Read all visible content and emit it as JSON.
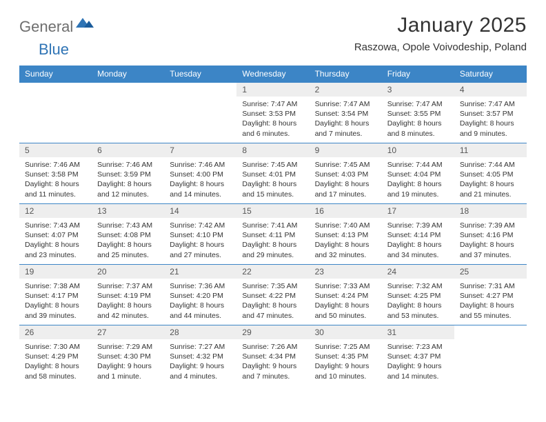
{
  "logo": {
    "general": "General",
    "blue": "Blue"
  },
  "title": "January 2025",
  "location": "Raszowa, Opole Voivodeship, Poland",
  "colors": {
    "header_bg": "#3c85c6",
    "header_fg": "#ffffff",
    "daynum_bg": "#eeeeee",
    "border": "#3c85c6",
    "logo_gray": "#6e6e6e",
    "logo_blue": "#2f74b5",
    "text": "#333333"
  },
  "weekdays": [
    "Sunday",
    "Monday",
    "Tuesday",
    "Wednesday",
    "Thursday",
    "Friday",
    "Saturday"
  ],
  "weeks": [
    [
      null,
      null,
      null,
      {
        "d": "1",
        "sr": "Sunrise: 7:47 AM",
        "ss": "Sunset: 3:53 PM",
        "dl1": "Daylight: 8 hours",
        "dl2": "and 6 minutes."
      },
      {
        "d": "2",
        "sr": "Sunrise: 7:47 AM",
        "ss": "Sunset: 3:54 PM",
        "dl1": "Daylight: 8 hours",
        "dl2": "and 7 minutes."
      },
      {
        "d": "3",
        "sr": "Sunrise: 7:47 AM",
        "ss": "Sunset: 3:55 PM",
        "dl1": "Daylight: 8 hours",
        "dl2": "and 8 minutes."
      },
      {
        "d": "4",
        "sr": "Sunrise: 7:47 AM",
        "ss": "Sunset: 3:57 PM",
        "dl1": "Daylight: 8 hours",
        "dl2": "and 9 minutes."
      }
    ],
    [
      {
        "d": "5",
        "sr": "Sunrise: 7:46 AM",
        "ss": "Sunset: 3:58 PM",
        "dl1": "Daylight: 8 hours",
        "dl2": "and 11 minutes."
      },
      {
        "d": "6",
        "sr": "Sunrise: 7:46 AM",
        "ss": "Sunset: 3:59 PM",
        "dl1": "Daylight: 8 hours",
        "dl2": "and 12 minutes."
      },
      {
        "d": "7",
        "sr": "Sunrise: 7:46 AM",
        "ss": "Sunset: 4:00 PM",
        "dl1": "Daylight: 8 hours",
        "dl2": "and 14 minutes."
      },
      {
        "d": "8",
        "sr": "Sunrise: 7:45 AM",
        "ss": "Sunset: 4:01 PM",
        "dl1": "Daylight: 8 hours",
        "dl2": "and 15 minutes."
      },
      {
        "d": "9",
        "sr": "Sunrise: 7:45 AM",
        "ss": "Sunset: 4:03 PM",
        "dl1": "Daylight: 8 hours",
        "dl2": "and 17 minutes."
      },
      {
        "d": "10",
        "sr": "Sunrise: 7:44 AM",
        "ss": "Sunset: 4:04 PM",
        "dl1": "Daylight: 8 hours",
        "dl2": "and 19 minutes."
      },
      {
        "d": "11",
        "sr": "Sunrise: 7:44 AM",
        "ss": "Sunset: 4:05 PM",
        "dl1": "Daylight: 8 hours",
        "dl2": "and 21 minutes."
      }
    ],
    [
      {
        "d": "12",
        "sr": "Sunrise: 7:43 AM",
        "ss": "Sunset: 4:07 PM",
        "dl1": "Daylight: 8 hours",
        "dl2": "and 23 minutes."
      },
      {
        "d": "13",
        "sr": "Sunrise: 7:43 AM",
        "ss": "Sunset: 4:08 PM",
        "dl1": "Daylight: 8 hours",
        "dl2": "and 25 minutes."
      },
      {
        "d": "14",
        "sr": "Sunrise: 7:42 AM",
        "ss": "Sunset: 4:10 PM",
        "dl1": "Daylight: 8 hours",
        "dl2": "and 27 minutes."
      },
      {
        "d": "15",
        "sr": "Sunrise: 7:41 AM",
        "ss": "Sunset: 4:11 PM",
        "dl1": "Daylight: 8 hours",
        "dl2": "and 29 minutes."
      },
      {
        "d": "16",
        "sr": "Sunrise: 7:40 AM",
        "ss": "Sunset: 4:13 PM",
        "dl1": "Daylight: 8 hours",
        "dl2": "and 32 minutes."
      },
      {
        "d": "17",
        "sr": "Sunrise: 7:39 AM",
        "ss": "Sunset: 4:14 PM",
        "dl1": "Daylight: 8 hours",
        "dl2": "and 34 minutes."
      },
      {
        "d": "18",
        "sr": "Sunrise: 7:39 AM",
        "ss": "Sunset: 4:16 PM",
        "dl1": "Daylight: 8 hours",
        "dl2": "and 37 minutes."
      }
    ],
    [
      {
        "d": "19",
        "sr": "Sunrise: 7:38 AM",
        "ss": "Sunset: 4:17 PM",
        "dl1": "Daylight: 8 hours",
        "dl2": "and 39 minutes."
      },
      {
        "d": "20",
        "sr": "Sunrise: 7:37 AM",
        "ss": "Sunset: 4:19 PM",
        "dl1": "Daylight: 8 hours",
        "dl2": "and 42 minutes."
      },
      {
        "d": "21",
        "sr": "Sunrise: 7:36 AM",
        "ss": "Sunset: 4:20 PM",
        "dl1": "Daylight: 8 hours",
        "dl2": "and 44 minutes."
      },
      {
        "d": "22",
        "sr": "Sunrise: 7:35 AM",
        "ss": "Sunset: 4:22 PM",
        "dl1": "Daylight: 8 hours",
        "dl2": "and 47 minutes."
      },
      {
        "d": "23",
        "sr": "Sunrise: 7:33 AM",
        "ss": "Sunset: 4:24 PM",
        "dl1": "Daylight: 8 hours",
        "dl2": "and 50 minutes."
      },
      {
        "d": "24",
        "sr": "Sunrise: 7:32 AM",
        "ss": "Sunset: 4:25 PM",
        "dl1": "Daylight: 8 hours",
        "dl2": "and 53 minutes."
      },
      {
        "d": "25",
        "sr": "Sunrise: 7:31 AM",
        "ss": "Sunset: 4:27 PM",
        "dl1": "Daylight: 8 hours",
        "dl2": "and 55 minutes."
      }
    ],
    [
      {
        "d": "26",
        "sr": "Sunrise: 7:30 AM",
        "ss": "Sunset: 4:29 PM",
        "dl1": "Daylight: 8 hours",
        "dl2": "and 58 minutes."
      },
      {
        "d": "27",
        "sr": "Sunrise: 7:29 AM",
        "ss": "Sunset: 4:30 PM",
        "dl1": "Daylight: 9 hours",
        "dl2": "and 1 minute."
      },
      {
        "d": "28",
        "sr": "Sunrise: 7:27 AM",
        "ss": "Sunset: 4:32 PM",
        "dl1": "Daylight: 9 hours",
        "dl2": "and 4 minutes."
      },
      {
        "d": "29",
        "sr": "Sunrise: 7:26 AM",
        "ss": "Sunset: 4:34 PM",
        "dl1": "Daylight: 9 hours",
        "dl2": "and 7 minutes."
      },
      {
        "d": "30",
        "sr": "Sunrise: 7:25 AM",
        "ss": "Sunset: 4:35 PM",
        "dl1": "Daylight: 9 hours",
        "dl2": "and 10 minutes."
      },
      {
        "d": "31",
        "sr": "Sunrise: 7:23 AM",
        "ss": "Sunset: 4:37 PM",
        "dl1": "Daylight: 9 hours",
        "dl2": "and 14 minutes."
      },
      null
    ]
  ]
}
